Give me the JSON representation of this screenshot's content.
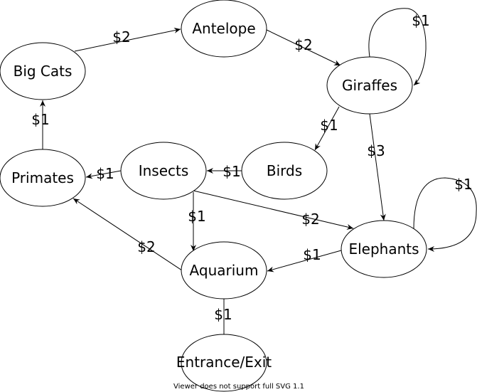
{
  "nodes": {
    "big_cats": "Big Cats",
    "antelope": "Antelope",
    "giraffes": "Giraffes",
    "primates": "Primates",
    "insects": "Insects",
    "birds": "Birds",
    "elephants": "Elephants",
    "aquarium": "Aquarium",
    "entrance": "Entrance/Exit"
  },
  "edges": {
    "bigcats_antelope": "$2",
    "antelope_giraffes": "$2",
    "giraffes_self": "$1",
    "giraffes_birds": "$1",
    "giraffes_elephants": "$3",
    "primates_bigcats": "$1",
    "insects_primates": "$1",
    "birds_insects": "$1",
    "insects_aquarium": "$1",
    "insects_elephants": "$2",
    "elephants_self": "$1",
    "elephants_aquarium": "$1",
    "aquarium_primates": "$2",
    "aquarium_entrance": "$1"
  },
  "footer": "Viewer does not support full SVG 1.1"
}
